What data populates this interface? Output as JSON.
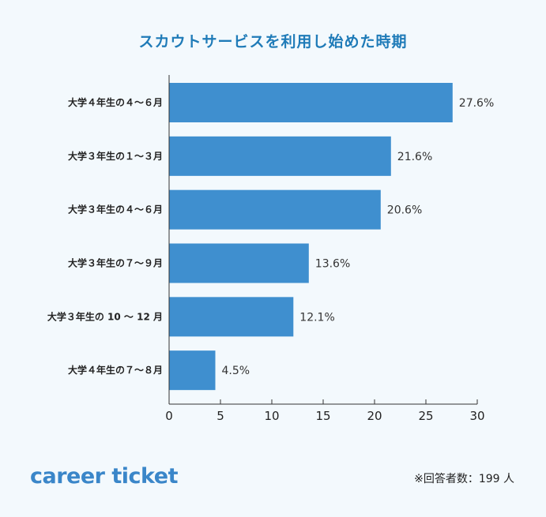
{
  "chart_data": {
    "type": "bar",
    "orientation": "horizontal",
    "title": "スカウトサービスを利用し始めた時期",
    "categories": [
      "大学４年生の４〜６月",
      "大学３年生の１〜３月",
      "大学３年生の４〜６月",
      "大学３年生の７〜９月",
      "大学３年生の 10 〜 12 月",
      "大学４年生の７〜８月"
    ],
    "values": [
      27.6,
      21.6,
      20.6,
      13.6,
      12.1,
      4.5
    ],
    "data_labels": [
      "27.6%",
      "21.6%",
      "20.6%",
      "13.6%",
      "12.1%",
      "4.5%"
    ],
    "xlim": [
      0,
      30
    ],
    "xticks": [
      0,
      5,
      10,
      15,
      20,
      25,
      30
    ],
    "xlabel": "",
    "ylabel": "",
    "grid": false,
    "bar_color": "#3f8fcf"
  },
  "logo_text": "career ticket",
  "footnote": "※回答者数：199 人"
}
